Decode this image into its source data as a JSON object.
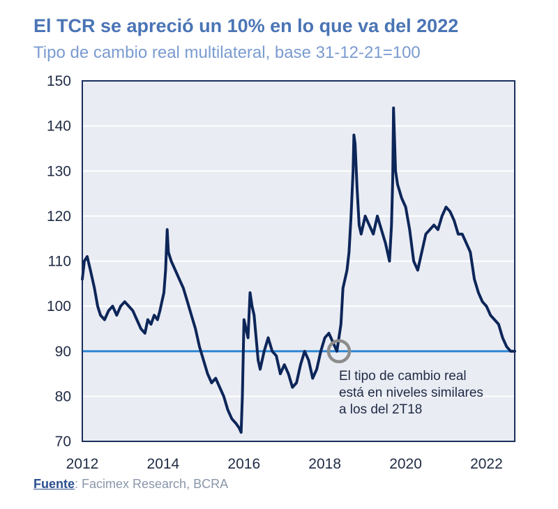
{
  "header": {
    "title": "El TCR se apreció un 10% en lo que va del 2022",
    "subtitle": "Tipo de cambio real multilateral, base 31-12-21=100"
  },
  "footer": {
    "source_label": "Fuente",
    "source_text": ": Facimex Research, BCRA"
  },
  "colors": {
    "series": "#0d2659",
    "reference_line": "#2f86d4",
    "plot_background": "#e9ecf3",
    "gridline": "#ffffff",
    "marker": "#8c8c8c"
  },
  "chart_data": {
    "type": "line",
    "title": "El TCR se apreció un 10% en lo que va del 2022",
    "subtitle": "Tipo de cambio real multilateral, base 31-12-21=100",
    "xlabel": "",
    "ylabel": "",
    "xlim": [
      2012.0,
      2022.7
    ],
    "ylim": [
      70,
      150
    ],
    "x_ticks": [
      "2012",
      "2014",
      "2016",
      "2018",
      "2020",
      "2022"
    ],
    "y_ticks": [
      "150",
      "140",
      "130",
      "120",
      "110",
      "100",
      "90",
      "80",
      "70"
    ],
    "grid": true,
    "reference_line": {
      "y": 90
    },
    "highlight_point": {
      "x": 2018.35,
      "y": 90
    },
    "annotation": [
      "El tipo de cambio real",
      "está en niveles similares",
      "a los del 2T18"
    ],
    "series": [
      {
        "name": "Tipo de cambio real multilateral",
        "x": [
          2012.0,
          2012.05,
          2012.12,
          2012.2,
          2012.3,
          2012.38,
          2012.45,
          2012.55,
          2012.65,
          2012.75,
          2012.85,
          2012.95,
          2013.05,
          2013.15,
          2013.25,
          2013.35,
          2013.45,
          2013.55,
          2013.62,
          2013.7,
          2013.78,
          2013.86,
          2013.92,
          2013.97,
          2014.02,
          2014.06,
          2014.1,
          2014.13,
          2014.2,
          2014.3,
          2014.4,
          2014.5,
          2014.6,
          2014.7,
          2014.8,
          2014.9,
          2015.0,
          2015.1,
          2015.2,
          2015.3,
          2015.4,
          2015.5,
          2015.6,
          2015.7,
          2015.8,
          2015.88,
          2015.93,
          2015.96,
          2016.0,
          2016.05,
          2016.1,
          2016.15,
          2016.2,
          2016.25,
          2016.3,
          2016.35,
          2016.4,
          2016.5,
          2016.6,
          2016.7,
          2016.8,
          2016.9,
          2017.0,
          2017.1,
          2017.2,
          2017.3,
          2017.4,
          2017.5,
          2017.6,
          2017.7,
          2017.8,
          2017.9,
          2018.0,
          2018.1,
          2018.2,
          2018.3,
          2018.4,
          2018.45,
          2018.5,
          2018.55,
          2018.6,
          2018.65,
          2018.7,
          2018.72,
          2018.75,
          2018.8,
          2018.85,
          2018.9,
          2019.0,
          2019.1,
          2019.2,
          2019.3,
          2019.4,
          2019.5,
          2019.6,
          2019.65,
          2019.68,
          2019.7,
          2019.75,
          2019.8,
          2019.9,
          2020.0,
          2020.1,
          2020.2,
          2020.3,
          2020.4,
          2020.5,
          2020.6,
          2020.7,
          2020.8,
          2020.9,
          2021.0,
          2021.1,
          2021.2,
          2021.3,
          2021.4,
          2021.5,
          2021.6,
          2021.7,
          2021.8,
          2021.9,
          2022.0,
          2022.1,
          2022.2,
          2022.3,
          2022.4,
          2022.5,
          2022.6,
          2022.7
        ],
        "values": [
          106,
          110,
          111,
          108,
          104,
          100,
          98,
          97,
          99,
          100,
          98,
          100,
          101,
          100,
          99,
          97,
          95,
          94,
          97,
          96,
          98,
          97,
          99,
          101,
          103,
          108,
          117,
          112,
          110,
          108,
          106,
          104,
          101,
          98,
          95,
          91,
          88,
          85,
          83,
          84,
          82,
          80,
          77,
          75,
          74,
          73,
          72,
          80,
          97,
          95,
          93,
          103,
          100,
          98,
          93,
          88,
          86,
          90,
          93,
          90,
          89,
          85,
          87,
          85,
          82,
          83,
          87,
          90,
          88,
          84,
          86,
          90,
          93,
          94,
          92,
          90,
          96,
          104,
          106,
          108,
          112,
          120,
          130,
          138,
          136,
          126,
          118,
          116,
          120,
          118,
          116,
          120,
          117,
          114,
          110,
          118,
          128,
          144,
          130,
          127,
          124,
          122,
          117,
          110,
          108,
          112,
          116,
          117,
          118,
          117,
          120,
          122,
          121,
          119,
          116,
          116,
          114,
          112,
          106,
          103,
          101,
          100,
          98,
          97,
          96,
          93,
          91,
          90,
          90
        ]
      }
    ]
  }
}
